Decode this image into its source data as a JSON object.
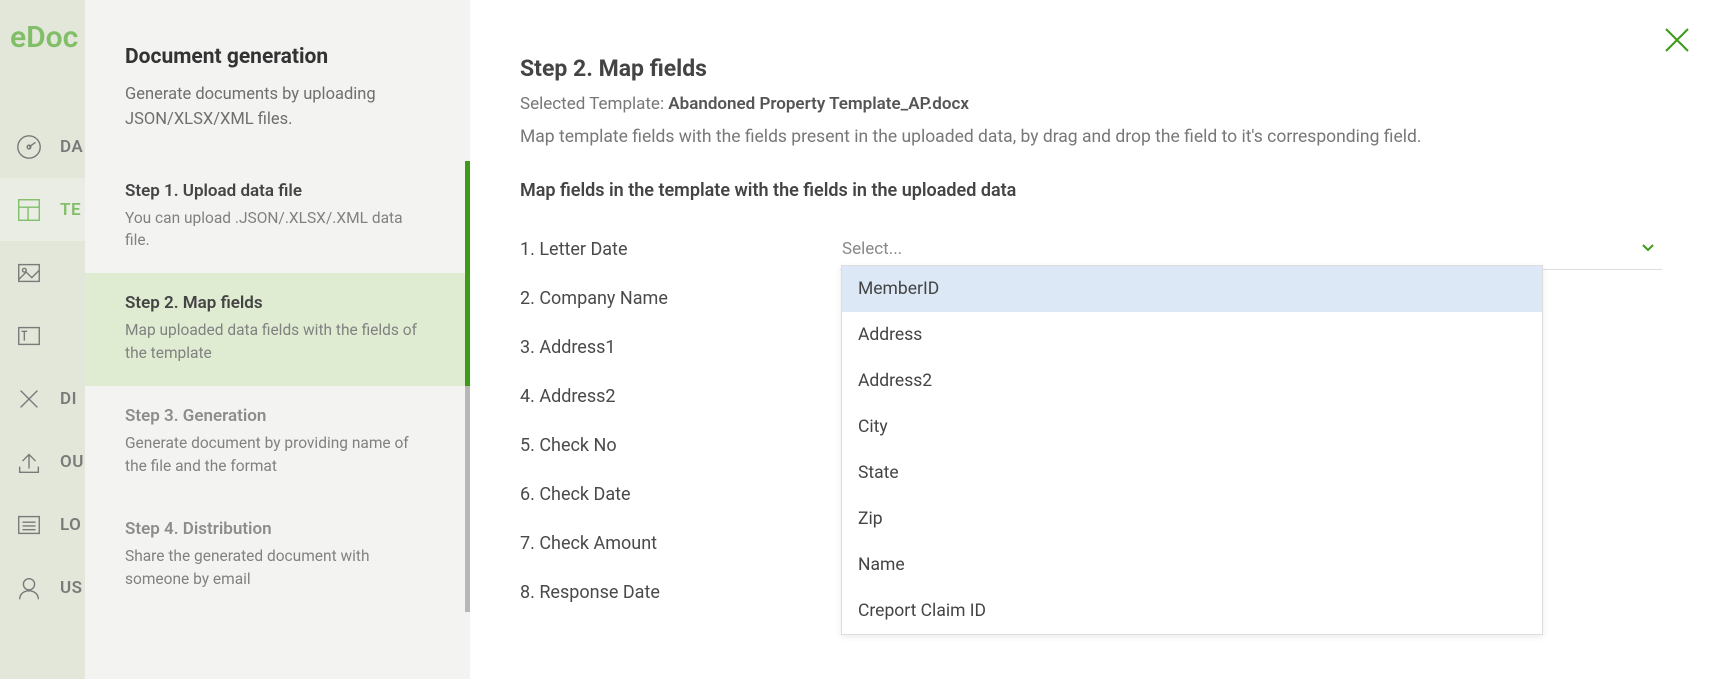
{
  "brand": {
    "logo_text": "eDoc"
  },
  "rail": {
    "items": [
      {
        "label": "DA",
        "icon": "gauge"
      },
      {
        "label": "TE",
        "icon": "template",
        "active": true
      },
      {
        "label": "",
        "icon": "image"
      },
      {
        "label": "",
        "icon": "text-edit"
      },
      {
        "label": "DI",
        "icon": "pencil-cross"
      },
      {
        "label": "OU",
        "icon": "upload"
      },
      {
        "label": "LO",
        "icon": "list"
      },
      {
        "label": "US",
        "icon": "user"
      }
    ]
  },
  "wizard": {
    "title": "Document generation",
    "subtitle": "Generate documents by uploading JSON/XLSX/XML files.",
    "steps": [
      {
        "title": "Step 1. Upload data file",
        "desc": "You can upload .JSON/.XLSX/.XML data file.",
        "state": "done"
      },
      {
        "title": "Step 2. Map fields",
        "desc": "Map uploaded data fields with the fields of the template",
        "state": "current"
      },
      {
        "title": "Step 3. Generation",
        "desc": "Generate document by providing name of the file and the format",
        "state": "pending"
      },
      {
        "title": "Step 4. Distribution",
        "desc": "Share the generated document with someone by email",
        "state": "pending"
      }
    ]
  },
  "main": {
    "heading": "Step 2. Map fields",
    "template_label": "Selected Template:",
    "template_name": "Abandoned Property Template_AP.docx",
    "instruction": "Map template fields with the fields present in the uploaded data, by drag and drop the field to it's corresponding field.",
    "sub_heading": "Map fields in the template with the fields in the uploaded data",
    "select_placeholder": "Select...",
    "template_fields": [
      "1. Letter Date",
      "2. Company Name",
      "3. Address1",
      "4. Address2",
      "5. Check No",
      "6. Check Date",
      "7. Check Amount",
      "8. Response Date"
    ],
    "dropdown_options": [
      "MemberID",
      "Address",
      "Address2",
      "City",
      "State",
      "Zip",
      "Name",
      "Creport Claim ID"
    ],
    "dropdown_highlight_index": 0
  },
  "colors": {
    "accent_green": "#3e9b18",
    "step_current_bg": "#dfecd2",
    "dropdown_highlight": "#dde8f7",
    "rail_bg": "#d5dac7"
  }
}
